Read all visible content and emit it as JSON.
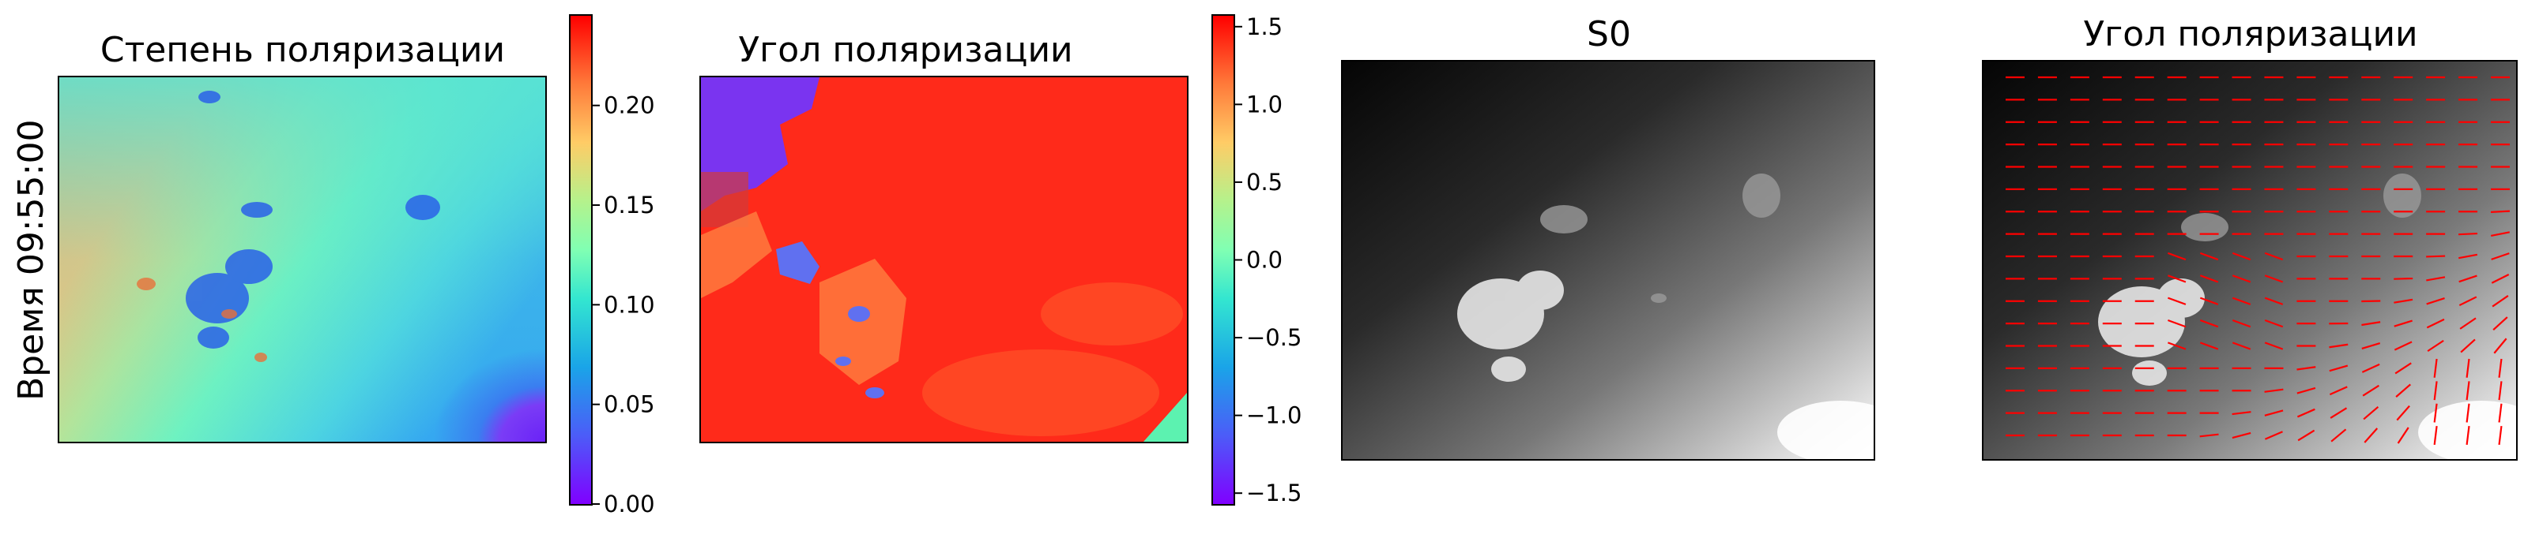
{
  "row_label": "Время 09:55:00",
  "chart_data": [
    {
      "type": "heatmap",
      "title": "Степень поляризации",
      "colormap": "rainbow",
      "colorbar": {
        "vmin": 0.0,
        "vmax": 0.245,
        "ticks": [
          0.0,
          0.05,
          0.1,
          0.15,
          0.2,
          0.25
        ],
        "tick_labels": [
          "0.00",
          "0.05",
          "0.10",
          "0.15",
          "0.20"
        ]
      },
      "axes_ticks": false
    },
    {
      "type": "heatmap",
      "title": "Угол поляризации",
      "colormap": "rainbow",
      "colorbar": {
        "vmin": -1.57,
        "vmax": 1.57,
        "ticks": [
          -1.5,
          -1.0,
          -0.5,
          0.0,
          0.5,
          1.0,
          1.5
        ],
        "tick_labels": [
          "−1.5",
          "−1.0",
          "−0.5",
          "0.0",
          "0.5",
          "1.0",
          "1.5"
        ]
      },
      "axes_ticks": false
    },
    {
      "type": "heatmap",
      "title": "S0",
      "colormap": "gray",
      "axes_ticks": false
    },
    {
      "type": "heatmap",
      "title": "Угол поляризации",
      "colormap": "gray",
      "overlay": "quiver",
      "overlay_color": "#ff0000",
      "axes_ticks": false
    }
  ]
}
